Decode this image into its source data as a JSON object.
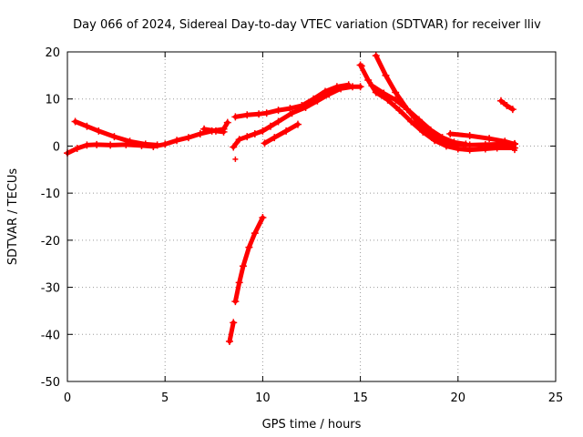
{
  "chart_data": {
    "type": "scatter",
    "title": "Day 066 of 2024, Sidereal Day-to-day VTEC variation (SDTVAR) for receiver lliv",
    "xlabel": "GPS time / hours",
    "ylabel": "SDTVAR / TECUs",
    "xlim": [
      0,
      25
    ],
    "ylim": [
      -50,
      20
    ],
    "xticks": [
      0,
      5,
      10,
      15,
      20,
      25
    ],
    "xtick_labels": [
      "0",
      "5",
      "10",
      "15",
      "20",
      "25"
    ],
    "yticks": [
      -50,
      -40,
      -30,
      -20,
      -10,
      0,
      10,
      20
    ],
    "ytick_labels": [
      "-50",
      "-40",
      "-30",
      "-20",
      "-10",
      "0",
      "10",
      "20"
    ],
    "grid": true,
    "marker": "+",
    "color": "#ff0000",
    "series": [
      {
        "name": "track-1",
        "points": [
          [
            0.4,
            5.2
          ],
          [
            1.0,
            4.2
          ],
          [
            1.6,
            3.2
          ],
          [
            2.4,
            2.0
          ],
          [
            3.2,
            1.0
          ],
          [
            4.0,
            0.4
          ],
          [
            4.6,
            0.2
          ]
        ]
      },
      {
        "name": "track-2",
        "points": [
          [
            0.0,
            -1.5
          ],
          [
            0.5,
            -0.5
          ],
          [
            1.0,
            0.2
          ],
          [
            1.5,
            0.3
          ],
          [
            2.2,
            0.2
          ],
          [
            3.0,
            0.3
          ],
          [
            3.8,
            0.1
          ],
          [
            4.4,
            -0.1
          ],
          [
            5.0,
            0.4
          ],
          [
            5.6,
            1.2
          ],
          [
            6.2,
            1.8
          ],
          [
            6.8,
            2.6
          ],
          [
            7.4,
            3.2
          ],
          [
            8.0,
            3.6
          ],
          [
            8.2,
            5.0
          ]
        ]
      },
      {
        "name": "track-3",
        "points": [
          [
            7.0,
            3.6
          ],
          [
            7.6,
            3.2
          ],
          [
            8.0,
            3.0
          ]
        ]
      },
      {
        "name": "track-4",
        "points": [
          [
            8.5,
            -0.2
          ],
          [
            8.8,
            1.4
          ],
          [
            9.2,
            2.0
          ],
          [
            9.6,
            2.6
          ],
          [
            10.0,
            3.2
          ],
          [
            10.4,
            4.2
          ],
          [
            10.8,
            5.2
          ],
          [
            11.5,
            7.0
          ],
          [
            12.2,
            8.2
          ],
          [
            12.8,
            9.6
          ],
          [
            13.4,
            11.0
          ],
          [
            14.0,
            12.2
          ],
          [
            14.6,
            12.6
          ],
          [
            15.0,
            12.6
          ]
        ]
      },
      {
        "name": "track-5",
        "points": [
          [
            8.6,
            6.2
          ],
          [
            9.2,
            6.6
          ],
          [
            9.8,
            6.8
          ],
          [
            10.2,
            7.0
          ],
          [
            10.8,
            7.6
          ],
          [
            11.4,
            8.0
          ],
          [
            12.0,
            8.6
          ],
          [
            12.6,
            10.0
          ],
          [
            13.2,
            11.6
          ],
          [
            13.8,
            12.6
          ],
          [
            14.4,
            13.0
          ]
        ]
      },
      {
        "name": "track-6",
        "points": [
          [
            10.1,
            0.6
          ],
          [
            10.6,
            1.8
          ],
          [
            11.2,
            3.2
          ],
          [
            11.8,
            4.6
          ]
        ]
      },
      {
        "name": "track-7",
        "points": [
          [
            15.0,
            17.2
          ],
          [
            15.4,
            14.0
          ],
          [
            15.8,
            11.4
          ],
          [
            16.4,
            9.8
          ],
          [
            17.0,
            7.6
          ],
          [
            17.6,
            5.2
          ],
          [
            18.2,
            3.0
          ],
          [
            18.8,
            1.2
          ],
          [
            19.4,
            0.0
          ],
          [
            20.0,
            -0.6
          ],
          [
            20.6,
            -0.8
          ],
          [
            21.4,
            -0.6
          ],
          [
            22.0,
            -0.4
          ],
          [
            22.9,
            -0.4
          ]
        ]
      },
      {
        "name": "track-8",
        "points": [
          [
            15.8,
            19.2
          ],
          [
            16.3,
            15.0
          ],
          [
            16.8,
            11.4
          ],
          [
            17.4,
            7.8
          ],
          [
            18.0,
            4.8
          ],
          [
            18.6,
            2.8
          ],
          [
            19.2,
            1.2
          ],
          [
            19.8,
            0.4
          ],
          [
            20.6,
            0.2
          ],
          [
            21.4,
            0.3
          ],
          [
            22.2,
            0.4
          ],
          [
            22.9,
            0.5
          ]
        ]
      },
      {
        "name": "track-9",
        "points": [
          [
            15.6,
            12.8
          ],
          [
            16.2,
            11.2
          ],
          [
            16.8,
            9.8
          ],
          [
            17.4,
            7.8
          ],
          [
            18.0,
            5.6
          ],
          [
            18.6,
            3.4
          ],
          [
            19.2,
            1.8
          ],
          [
            19.8,
            0.8
          ],
          [
            20.4,
            0.4
          ]
        ]
      },
      {
        "name": "track-10",
        "points": [
          [
            19.6,
            2.6
          ],
          [
            20.6,
            2.2
          ],
          [
            21.6,
            1.6
          ],
          [
            22.4,
            1.0
          ],
          [
            22.9,
            0.4
          ]
        ]
      },
      {
        "name": "track-11",
        "points": [
          [
            22.2,
            9.6
          ],
          [
            22.5,
            8.6
          ],
          [
            22.8,
            7.8
          ]
        ]
      },
      {
        "name": "track-12",
        "points": [
          [
            8.3,
            -41.5
          ],
          [
            8.5,
            -37.5
          ]
        ]
      },
      {
        "name": "track-13",
        "points": [
          [
            8.6,
            -33.0
          ],
          [
            8.8,
            -29.0
          ],
          [
            9.0,
            -25.5
          ],
          [
            9.3,
            -21.5
          ],
          [
            9.6,
            -18.5
          ],
          [
            10.0,
            -15.2
          ]
        ]
      }
    ],
    "isolated_points": [
      [
        8.6,
        -2.8
      ],
      [
        15.1,
        17.0
      ],
      [
        22.9,
        -0.9
      ]
    ]
  }
}
